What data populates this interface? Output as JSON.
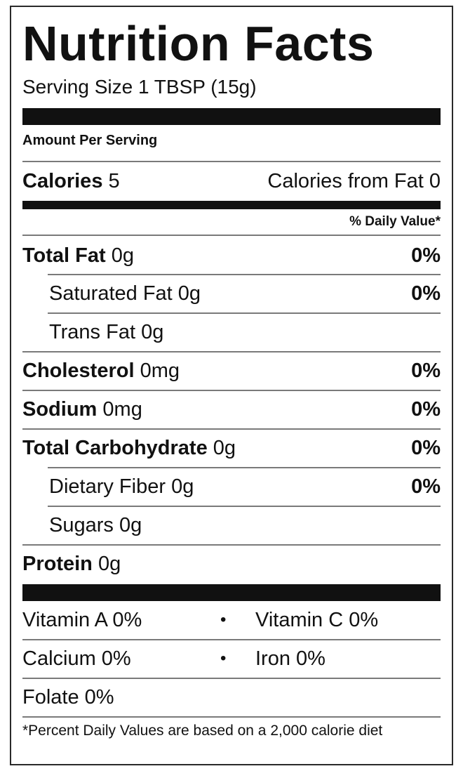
{
  "title": "Nutrition Facts",
  "serving": "Serving Size 1 TBSP (15g)",
  "amount_per_serving": "Amount Per Serving",
  "calories": {
    "label": "Calories",
    "value": "5",
    "from_fat": "Calories from Fat 0"
  },
  "daily_value_header": "% Daily Value*",
  "nutrients": [
    {
      "name": "Total Fat",
      "amount": "0g",
      "dv": "0%"
    },
    {
      "name": "Saturated Fat",
      "amount": "0g",
      "dv": "0%"
    },
    {
      "name": "Trans Fat",
      "amount": "0g",
      "dv": ""
    },
    {
      "name": "Cholesterol",
      "amount": "0mg",
      "dv": "0%"
    },
    {
      "name": "Sodium",
      "amount": "0mg",
      "dv": "0%"
    },
    {
      "name": "Total Carbohydrate",
      "amount": "0g",
      "dv": "0%"
    },
    {
      "name": "Dietary Fiber",
      "amount": "0g",
      "dv": "0%"
    },
    {
      "name": "Sugars",
      "amount": "0g",
      "dv": ""
    },
    {
      "name": "Protein",
      "amount": "0g",
      "dv": ""
    }
  ],
  "vitamins": {
    "vitamin_a": "Vitamin A 0%",
    "vitamin_c": "Vitamin C 0%",
    "calcium": "Calcium 0%",
    "iron": "Iron 0%",
    "folate": "Folate 0%",
    "separator": "•"
  },
  "footnote": "*Percent Daily Values are based on a 2,000 calorie diet"
}
